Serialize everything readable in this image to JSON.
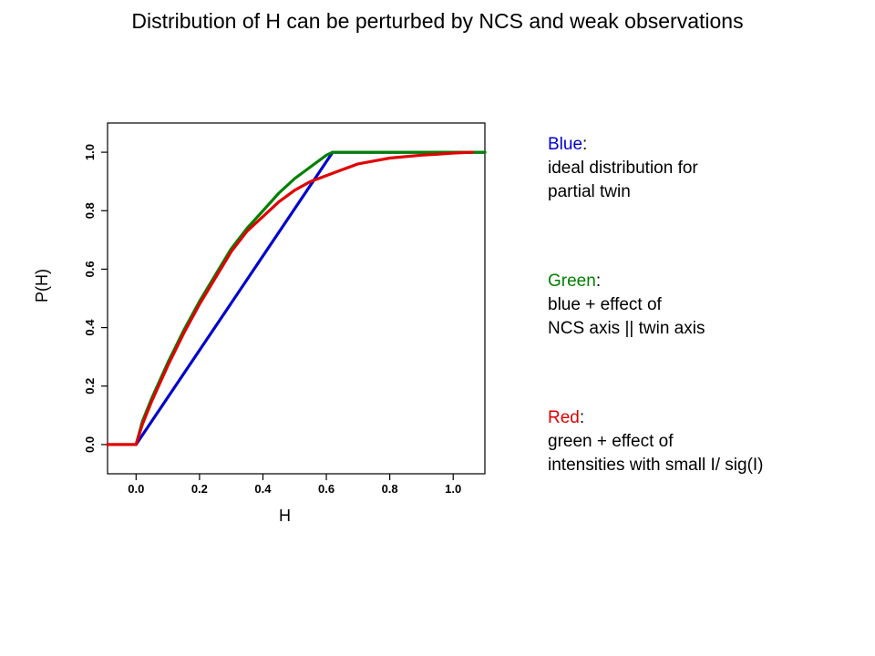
{
  "title": "Distribution of H can be perturbed by NCS and weak observations",
  "chart_data": {
    "type": "line",
    "xlabel": "H",
    "ylabel": "P(H)",
    "xlim": [
      -0.09,
      1.1
    ],
    "ylim": [
      -0.1,
      1.1
    ],
    "xticks": [
      "0.0",
      "0.2",
      "0.4",
      "0.6",
      "0.8",
      "1.0"
    ],
    "yticks": [
      "0.0",
      "0.2",
      "0.4",
      "0.6",
      "0.8",
      "1.0"
    ],
    "series": [
      {
        "key": "blue",
        "color": "#0000cc",
        "x": [
          0.0,
          0.62,
          1.1
        ],
        "y": [
          0.0,
          1.0,
          1.0
        ]
      },
      {
        "key": "green",
        "color": "#008000",
        "x": [
          0.0,
          0.02,
          0.05,
          0.1,
          0.15,
          0.2,
          0.25,
          0.3,
          0.35,
          0.4,
          0.45,
          0.5,
          0.55,
          0.6,
          0.62,
          0.8,
          1.0,
          1.1
        ],
        "y": [
          0.0,
          0.08,
          0.16,
          0.28,
          0.39,
          0.49,
          0.58,
          0.67,
          0.74,
          0.8,
          0.86,
          0.91,
          0.95,
          0.99,
          1.0,
          1.0,
          1.0,
          1.0
        ]
      },
      {
        "key": "red",
        "color": "#e00000",
        "x": [
          -0.09,
          0.0,
          0.02,
          0.05,
          0.1,
          0.15,
          0.2,
          0.25,
          0.3,
          0.35,
          0.4,
          0.45,
          0.5,
          0.55,
          0.6,
          0.65,
          0.7,
          0.75,
          0.8,
          0.85,
          0.9,
          0.95,
          1.0,
          1.06
        ],
        "y": [
          0.0,
          0.0,
          0.07,
          0.15,
          0.27,
          0.38,
          0.48,
          0.57,
          0.66,
          0.73,
          0.78,
          0.83,
          0.87,
          0.9,
          0.92,
          0.94,
          0.96,
          0.97,
          0.98,
          0.985,
          0.99,
          0.993,
          0.997,
          1.0
        ]
      }
    ]
  },
  "legend": [
    {
      "key": "blue",
      "label": "Blue",
      "color": "#0000cc",
      "lines": [
        "ideal distribution for",
        "partial twin"
      ]
    },
    {
      "key": "green",
      "label": "Green",
      "color": "#008000",
      "lines": [
        "blue + effect of",
        "NCS axis || twin axis"
      ]
    },
    {
      "key": "red",
      "label": "Red",
      "color": "#e00000",
      "lines": [
        "green + effect of",
        "intensities with small I/ sig(I)"
      ]
    }
  ]
}
